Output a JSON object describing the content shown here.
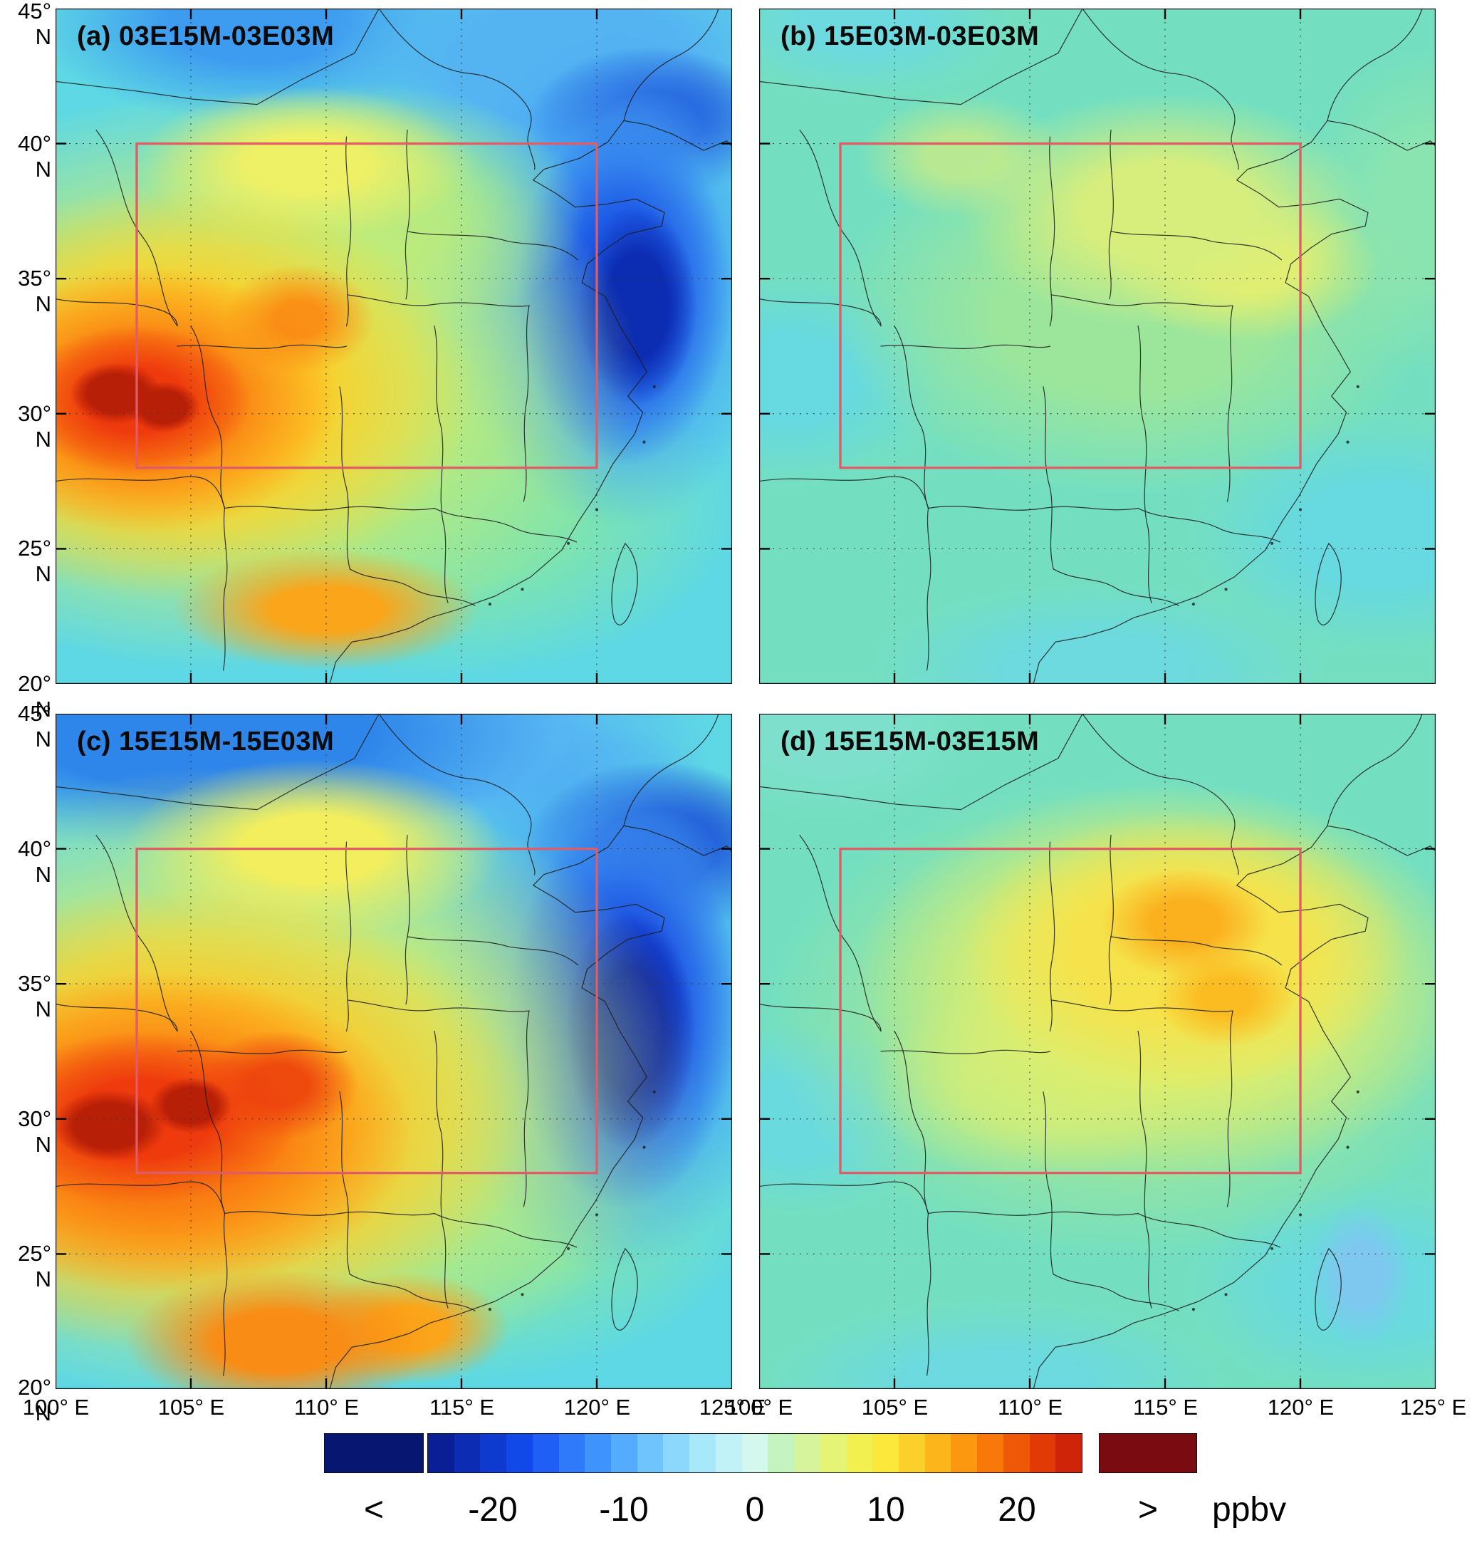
{
  "figure": {
    "panels": [
      {
        "id": "a",
        "label": "(a) 03E15M-03E03M"
      },
      {
        "id": "b",
        "label": "(b) 15E03M-03E03M"
      },
      {
        "id": "c",
        "label": "(c) 15E15M-15E03M"
      },
      {
        "id": "d",
        "label": "(d) 15E15M-03E15M"
      }
    ],
    "axes": {
      "lat_ticks": [
        "45° N",
        "40° N",
        "35° N",
        "30° N",
        "25° N",
        "20° N"
      ],
      "lon_ticks": [
        "100° E",
        "105° E",
        "110° E",
        "115° E",
        "120° E",
        "125° E"
      ]
    },
    "colorbar": {
      "ticks": [
        "-20",
        "-10",
        "0",
        "10",
        "20"
      ],
      "less_than": "<",
      "greater_than": ">",
      "units": "ppbv",
      "under_color": "#071670",
      "over_color": "#7a0b10",
      "segment_colors": [
        "#0a1e96",
        "#0c2cb4",
        "#0e3ad0",
        "#1049e8",
        "#1f5ff6",
        "#2f79fb",
        "#3f93fd",
        "#55acfe",
        "#6fc4fe",
        "#8cd8fd",
        "#a8e8fb",
        "#c0f2f8",
        "#d4f8ee",
        "#c6f4c0",
        "#d6f49c",
        "#e6f476",
        "#f2f050",
        "#fce83a",
        "#fcd02a",
        "#fcb61c",
        "#fc9810",
        "#f8780a",
        "#ee5806",
        "#e23a06",
        "#d02408"
      ]
    },
    "study_box_color": "#e05c66"
  },
  "chart_data": {
    "type": "heatmap",
    "subtype": "filled-contour-difference-maps",
    "units": "ppbv",
    "projection": "longitude-latitude",
    "lon_range": [
      100,
      125
    ],
    "lat_range": [
      20,
      45
    ],
    "lon_tick_values": [
      100,
      105,
      110,
      115,
      120,
      125
    ],
    "lat_tick_values": [
      20,
      25,
      30,
      35,
      40,
      45
    ],
    "grid": "dotted graticule every 5 degrees",
    "colorbar": {
      "tick_values": [
        -20,
        -10,
        0,
        10,
        20
      ],
      "approx_range": [
        -25,
        25
      ],
      "open_ended": true,
      "under_label": "<",
      "over_label": ">",
      "units": "ppbv"
    },
    "study_box": {
      "lon": [
        103,
        120
      ],
      "lat": [
        28,
        40
      ]
    },
    "panels": [
      {
        "id": "a",
        "title": "(a) 03E15M-03E03M",
        "features": [
          "Strong positive difference >20 ppbv over southwest China (~102-108E, 23-27N) with dark-red cores",
          "Positive band 10-20 ppbv across south-central China and along ~22N coast",
          "Strong negative difference < -20 ppbv along the east coast / offshore (~119-123E, 27-34N)",
          "Negative band -5 to -15 ppbv across the north (38-45N) and top-right corner"
        ]
      },
      {
        "id": "b",
        "title": "(b) 15E03M-03E03M",
        "features": [
          "Near-zero differences (about -5 to +5 ppbv) almost everywhere",
          "Weak positive patch ~5 ppbv over central-east China (~110-118E, 30-38N)",
          "Weak cyan (slightly negative) patches near edges and over seas"
        ]
      },
      {
        "id": "c",
        "title": "(c) 15E15M-15E03M",
        "features": [
          "Strong positive difference >20 ppbv over southwest and south China (~100-112E, 20-28N), larger extent than panel a",
          "Positive band 5-15 ppbv through central China",
          "Strong negative difference < -20 ppbv along the east coast (~119-123E, 26-35N)",
          "Negative band -10 to -20 ppbv along the northern edge (40-45N)"
        ]
      },
      {
        "id": "d",
        "title": "(d) 15E15M-03E15M",
        "features": [
          "Moderate positive difference 5-15 ppbv over central-east China / North China Plain (~110-120E, 30-40N) with orange cores",
          "Near-zero to weakly negative elsewhere, cyan patches over seas and southwest"
        ]
      }
    ]
  }
}
